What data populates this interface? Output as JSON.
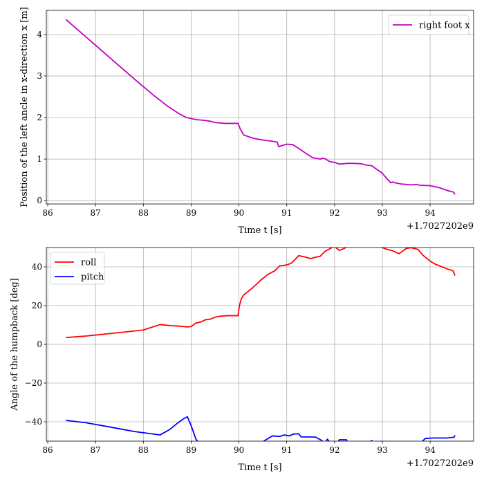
{
  "chart_data": [
    {
      "type": "line",
      "xlabel": "Time t [s]",
      "ylabel": "Position of the left ancle in x-direction x [m]",
      "x_offset_label": "+1.7027202e9",
      "xlim": [
        85.97,
        94.91
      ],
      "ylim": [
        -0.08,
        4.58
      ],
      "xticks": [
        86,
        87,
        88,
        89,
        90,
        91,
        92,
        93,
        94
      ],
      "yticks": [
        0,
        1,
        2,
        3,
        4
      ],
      "grid": true,
      "legend_position": "top-right",
      "series": [
        {
          "name": "right foot x",
          "color": "#bf00bf",
          "points": [
            [
              86.38,
              4.36
            ],
            [
              86.7,
              4.04
            ],
            [
              87.0,
              3.74
            ],
            [
              87.4,
              3.34
            ],
            [
              87.8,
              2.94
            ],
            [
              88.2,
              2.55
            ],
            [
              88.5,
              2.28
            ],
            [
              88.75,
              2.09
            ],
            [
              88.9,
              2.0
            ],
            [
              89.1,
              1.95
            ],
            [
              89.3,
              1.93
            ],
            [
              89.4,
              1.91
            ],
            [
              89.5,
              1.88
            ],
            [
              89.7,
              1.86
            ],
            [
              89.98,
              1.86
            ],
            [
              90.03,
              1.72
            ],
            [
              90.1,
              1.58
            ],
            [
              90.3,
              1.5
            ],
            [
              90.5,
              1.46
            ],
            [
              90.7,
              1.43
            ],
            [
              90.8,
              1.41
            ],
            [
              90.83,
              1.3
            ],
            [
              91.0,
              1.36
            ],
            [
              91.12,
              1.35
            ],
            [
              91.22,
              1.28
            ],
            [
              91.4,
              1.14
            ],
            [
              91.55,
              1.03
            ],
            [
              91.7,
              1.0
            ],
            [
              91.75,
              1.02
            ],
            [
              91.8,
              1.01
            ],
            [
              91.9,
              0.94
            ],
            [
              92.0,
              0.92
            ],
            [
              92.1,
              0.88
            ],
            [
              92.2,
              0.89
            ],
            [
              92.3,
              0.9
            ],
            [
              92.55,
              0.89
            ],
            [
              92.65,
              0.86
            ],
            [
              92.78,
              0.84
            ],
            [
              92.9,
              0.74
            ],
            [
              93.0,
              0.66
            ],
            [
              93.1,
              0.52
            ],
            [
              93.18,
              0.43
            ],
            [
              93.22,
              0.45
            ],
            [
              93.3,
              0.42
            ],
            [
              93.4,
              0.4
            ],
            [
              93.6,
              0.38
            ],
            [
              93.7,
              0.39
            ],
            [
              93.8,
              0.37
            ],
            [
              94.0,
              0.36
            ],
            [
              94.17,
              0.32
            ],
            [
              94.3,
              0.27
            ],
            [
              94.4,
              0.23
            ],
            [
              94.48,
              0.21
            ],
            [
              94.52,
              0.15
            ]
          ]
        }
      ]
    },
    {
      "type": "line",
      "xlabel": "Time t [s]",
      "ylabel": "Angle of the humpback [deg]",
      "x_offset_label": "+1.7027202e9",
      "xlim": [
        85.97,
        94.91
      ],
      "ylim": [
        -50,
        50
      ],
      "xticks": [
        86,
        87,
        88,
        89,
        90,
        91,
        92,
        93,
        94
      ],
      "yticks": [
        -40,
        -20,
        0,
        20,
        40
      ],
      "grid": true,
      "legend_position": "top-left",
      "series": [
        {
          "name": "roll",
          "color": "#ff0000",
          "points": [
            [
              86.38,
              3.5
            ],
            [
              86.8,
              4.3
            ],
            [
              87.4,
              5.8
            ],
            [
              88.0,
              7.4
            ],
            [
              88.35,
              10.2
            ],
            [
              88.6,
              9.6
            ],
            [
              88.8,
              9.3
            ],
            [
              88.92,
              9.0
            ],
            [
              89.0,
              9.2
            ],
            [
              89.1,
              11.0
            ],
            [
              89.2,
              11.5
            ],
            [
              89.3,
              12.7
            ],
            [
              89.4,
              13.0
            ],
            [
              89.5,
              14.0
            ],
            [
              89.6,
              14.5
            ],
            [
              89.75,
              14.8
            ],
            [
              89.98,
              14.8
            ],
            [
              90.01,
              20.0
            ],
            [
              90.05,
              23.5
            ],
            [
              90.1,
              25.5
            ],
            [
              90.3,
              29.5
            ],
            [
              90.45,
              33.0
            ],
            [
              90.6,
              36.0
            ],
            [
              90.75,
              38.0
            ],
            [
              90.85,
              40.5
            ],
            [
              91.0,
              41.0
            ],
            [
              91.1,
              42.0
            ],
            [
              91.2,
              44.5
            ],
            [
              91.25,
              45.8
            ],
            [
              91.35,
              45.3
            ],
            [
              91.5,
              44.3
            ],
            [
              91.6,
              45.0
            ],
            [
              91.7,
              45.5
            ],
            [
              91.8,
              48.0
            ],
            [
              91.95,
              50.0
            ],
            [
              92.0,
              50.5
            ],
            [
              92.1,
              48.5
            ],
            [
              92.2,
              49.5
            ],
            [
              92.3,
              51.0
            ],
            [
              92.85,
              51.0
            ],
            [
              93.0,
              50.0
            ],
            [
              93.1,
              49.0
            ],
            [
              93.2,
              48.5
            ],
            [
              93.35,
              46.8
            ],
            [
              93.5,
              49.5
            ],
            [
              93.6,
              49.9
            ],
            [
              93.75,
              49.0
            ],
            [
              93.85,
              46.0
            ],
            [
              94.0,
              43.0
            ],
            [
              94.1,
              41.5
            ],
            [
              94.2,
              40.5
            ],
            [
              94.35,
              39.0
            ],
            [
              94.48,
              38.0
            ],
            [
              94.52,
              35.5
            ]
          ]
        },
        {
          "name": "pitch",
          "color": "#0000ff",
          "points": [
            [
              86.38,
              -39.3
            ],
            [
              86.8,
              -40.5
            ],
            [
              87.3,
              -42.7
            ],
            [
              87.8,
              -45.0
            ],
            [
              88.35,
              -46.8
            ],
            [
              88.55,
              -44.0
            ],
            [
              88.7,
              -41.0
            ],
            [
              88.85,
              -38.3
            ],
            [
              88.92,
              -37.4
            ],
            [
              89.0,
              -42.0
            ],
            [
              89.1,
              -49.0
            ],
            [
              89.2,
              -52.0
            ],
            [
              90.4,
              -52.0
            ],
            [
              90.55,
              -49.5
            ],
            [
              90.7,
              -47.3
            ],
            [
              90.85,
              -47.6
            ],
            [
              90.95,
              -46.8
            ],
            [
              91.05,
              -47.3
            ],
            [
              91.15,
              -46.3
            ],
            [
              91.25,
              -46.2
            ],
            [
              91.3,
              -47.8
            ],
            [
              91.6,
              -47.9
            ],
            [
              91.72,
              -49.5
            ],
            [
              91.8,
              -51.0
            ],
            [
              91.85,
              -49.0
            ],
            [
              91.9,
              -50.5
            ],
            [
              92.05,
              -52.0
            ],
            [
              92.1,
              -49.3
            ],
            [
              92.25,
              -49.3
            ],
            [
              92.3,
              -52.0
            ],
            [
              92.7,
              -51.0
            ],
            [
              92.78,
              -49.7
            ],
            [
              92.83,
              -51.0
            ],
            [
              93.8,
              -51.0
            ],
            [
              93.9,
              -48.6
            ],
            [
              94.05,
              -48.4
            ],
            [
              94.35,
              -48.4
            ],
            [
              94.5,
              -48.0
            ],
            [
              94.52,
              -47.0
            ]
          ]
        }
      ]
    }
  ]
}
